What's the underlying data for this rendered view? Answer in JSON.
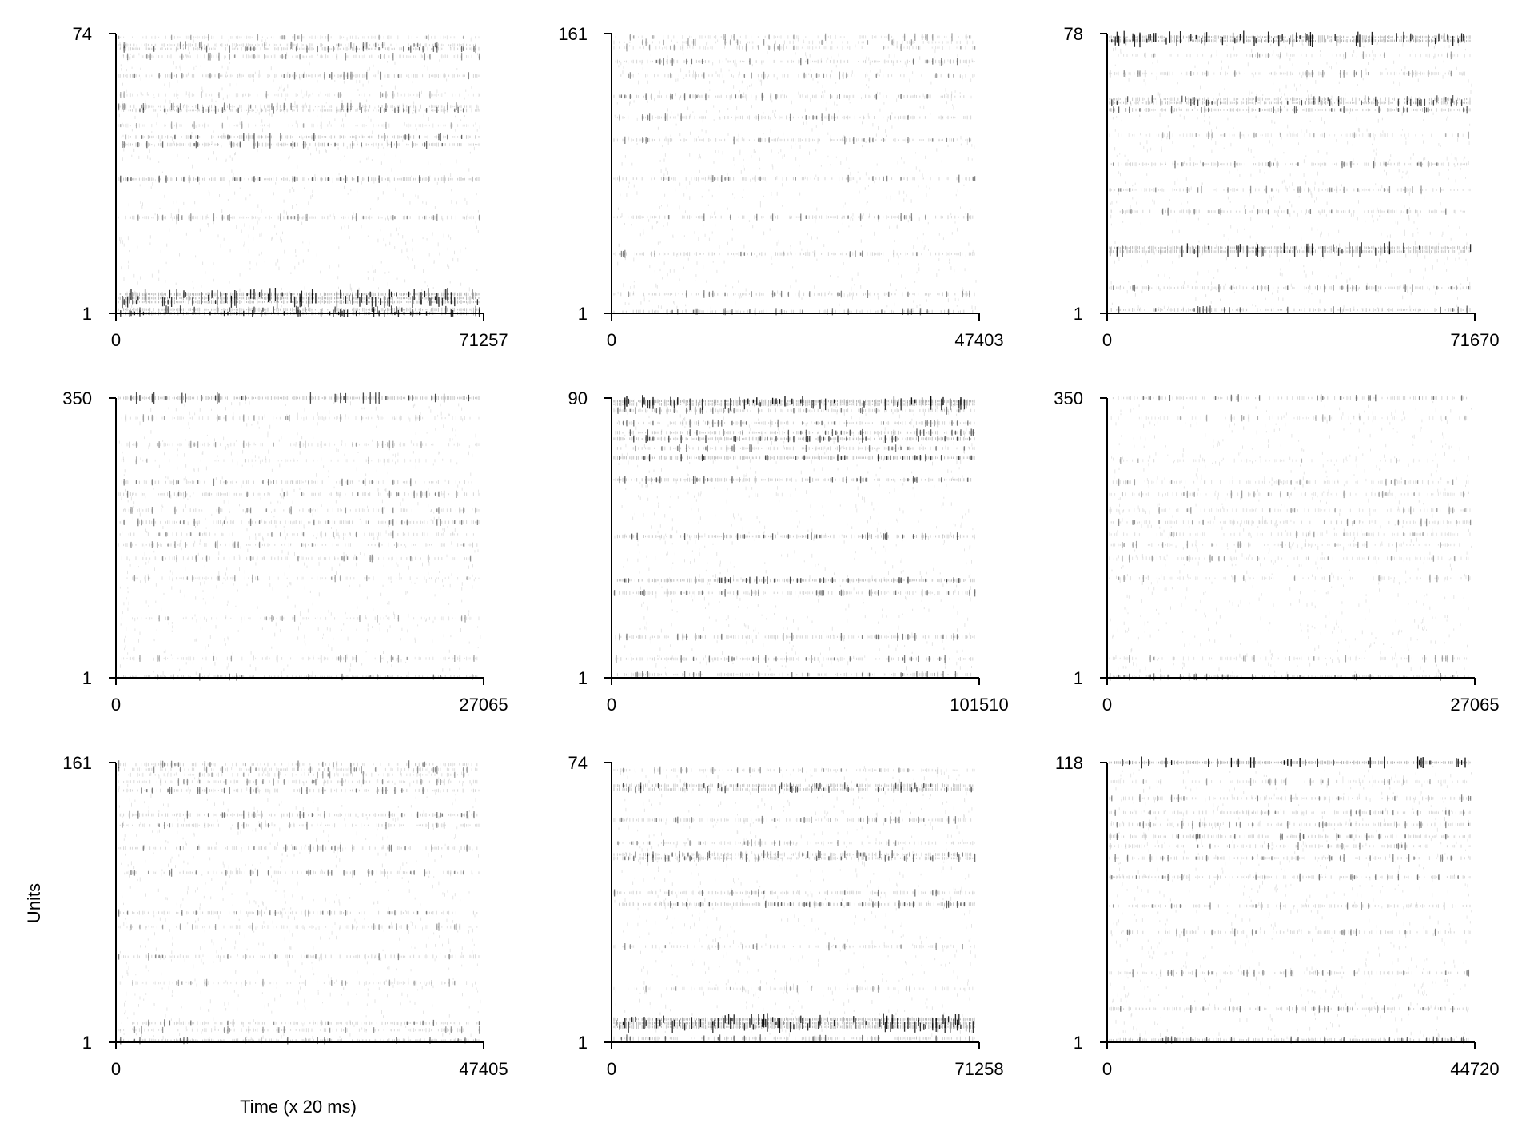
{
  "figure": {
    "ylabel": "Units",
    "xlabel": "Time (x 20 ms)"
  },
  "chart_data": [
    {
      "type": "scatter",
      "subtype": "raster",
      "xlim": [
        0,
        71257
      ],
      "ylim": [
        1,
        74
      ],
      "xticks": [
        "0",
        "71257"
      ],
      "yticks": [
        "1",
        "74"
      ],
      "rows": [
        {
          "u": 73,
          "d": 0.5,
          "a": 0.35
        },
        {
          "u": 71,
          "d": 0.6,
          "a": 0.45
        },
        {
          "u": 70,
          "d": 0.7,
          "a": 0.55
        },
        {
          "u": 68,
          "d": 0.5,
          "a": 0.4
        },
        {
          "u": 63,
          "d": 0.6,
          "a": 0.45
        },
        {
          "u": 58,
          "d": 0.4,
          "a": 0.3
        },
        {
          "u": 55,
          "d": 0.6,
          "a": 0.45
        },
        {
          "u": 54,
          "d": 0.7,
          "a": 0.55
        },
        {
          "u": 50,
          "d": 0.4,
          "a": 0.3
        },
        {
          "u": 47,
          "d": 0.7,
          "a": 0.6
        },
        {
          "u": 45,
          "d": 0.7,
          "a": 0.55
        },
        {
          "u": 36,
          "d": 0.7,
          "a": 0.6
        },
        {
          "u": 26,
          "d": 0.6,
          "a": 0.4
        },
        {
          "u": 6,
          "d": 0.9,
          "a": 0.85
        },
        {
          "u": 5,
          "d": 0.9,
          "a": 0.85
        },
        {
          "u": 4,
          "d": 0.9,
          "a": 0.8
        },
        {
          "u": 2,
          "d": 0.8,
          "a": 0.7
        },
        {
          "u": 1,
          "d": 0.8,
          "a": 0.8
        }
      ]
    },
    {
      "type": "scatter",
      "subtype": "raster",
      "xlim": [
        0,
        47403
      ],
      "ylim": [
        1,
        161
      ],
      "xticks": [
        "0",
        "47403"
      ],
      "yticks": [
        "1",
        "161"
      ],
      "rows": [
        {
          "u": 159,
          "d": 0.4,
          "a": 0.35
        },
        {
          "u": 156,
          "d": 0.4,
          "a": 0.35
        },
        {
          "u": 153,
          "d": 0.4,
          "a": 0.35
        },
        {
          "u": 145,
          "d": 0.5,
          "a": 0.5
        },
        {
          "u": 137,
          "d": 0.4,
          "a": 0.4
        },
        {
          "u": 125,
          "d": 0.5,
          "a": 0.5
        },
        {
          "u": 113,
          "d": 0.5,
          "a": 0.45
        },
        {
          "u": 100,
          "d": 0.5,
          "a": 0.45
        },
        {
          "u": 78,
          "d": 0.5,
          "a": 0.45
        },
        {
          "u": 56,
          "d": 0.5,
          "a": 0.45
        },
        {
          "u": 35,
          "d": 0.5,
          "a": 0.45
        },
        {
          "u": 12,
          "d": 0.5,
          "a": 0.45
        },
        {
          "u": 2,
          "d": 0.5,
          "a": 0.5
        }
      ]
    },
    {
      "type": "scatter",
      "subtype": "raster",
      "xlim": [
        0,
        71670
      ],
      "ylim": [
        1,
        78
      ],
      "xticks": [
        "0",
        "71670"
      ],
      "yticks": [
        "1",
        "78"
      ],
      "rows": [
        {
          "u": 77,
          "d": 0.9,
          "a": 0.85
        },
        {
          "u": 76,
          "d": 0.9,
          "a": 0.85
        },
        {
          "u": 72,
          "d": 0.4,
          "a": 0.35
        },
        {
          "u": 67,
          "d": 0.5,
          "a": 0.4
        },
        {
          "u": 60,
          "d": 0.7,
          "a": 0.6
        },
        {
          "u": 59,
          "d": 0.8,
          "a": 0.7
        },
        {
          "u": 57,
          "d": 0.7,
          "a": 0.6
        },
        {
          "u": 50,
          "d": 0.4,
          "a": 0.3
        },
        {
          "u": 42,
          "d": 0.6,
          "a": 0.5
        },
        {
          "u": 35,
          "d": 0.5,
          "a": 0.4
        },
        {
          "u": 29,
          "d": 0.5,
          "a": 0.45
        },
        {
          "u": 19,
          "d": 0.9,
          "a": 0.8
        },
        {
          "u": 18,
          "d": 0.9,
          "a": 0.75
        },
        {
          "u": 8,
          "d": 0.6,
          "a": 0.5
        },
        {
          "u": 2,
          "d": 0.6,
          "a": 0.6
        }
      ]
    },
    {
      "type": "scatter",
      "subtype": "raster",
      "xlim": [
        0,
        27065
      ],
      "ylim": [
        1,
        350
      ],
      "xticks": [
        "0",
        "27065"
      ],
      "yticks": [
        "1",
        "350"
      ],
      "rows": [
        {
          "u": 350,
          "d": 0.9,
          "a": 0.7
        },
        {
          "u": 325,
          "d": 0.4,
          "a": 0.35
        },
        {
          "u": 292,
          "d": 0.4,
          "a": 0.35
        },
        {
          "u": 272,
          "d": 0.3,
          "a": 0.3
        },
        {
          "u": 245,
          "d": 0.5,
          "a": 0.45
        },
        {
          "u": 230,
          "d": 0.5,
          "a": 0.45
        },
        {
          "u": 210,
          "d": 0.4,
          "a": 0.4
        },
        {
          "u": 195,
          "d": 0.5,
          "a": 0.45
        },
        {
          "u": 180,
          "d": 0.4,
          "a": 0.4
        },
        {
          "u": 167,
          "d": 0.4,
          "a": 0.4
        },
        {
          "u": 150,
          "d": 0.4,
          "a": 0.4
        },
        {
          "u": 125,
          "d": 0.4,
          "a": 0.35
        },
        {
          "u": 75,
          "d": 0.4,
          "a": 0.35
        },
        {
          "u": 25,
          "d": 0.4,
          "a": 0.35
        },
        {
          "u": 2,
          "d": 0.6,
          "a": 0.5
        }
      ]
    },
    {
      "type": "scatter",
      "subtype": "raster",
      "xlim": [
        0,
        101510
      ],
      "ylim": [
        1,
        90
      ],
      "xticks": [
        "0",
        "101510"
      ],
      "yticks": [
        "1",
        "90"
      ],
      "rows": [
        {
          "u": 89,
          "d": 0.95,
          "a": 0.95
        },
        {
          "u": 88,
          "d": 0.9,
          "a": 0.8
        },
        {
          "u": 86,
          "d": 0.6,
          "a": 0.5
        },
        {
          "u": 82,
          "d": 0.6,
          "a": 0.5
        },
        {
          "u": 79,
          "d": 0.7,
          "a": 0.6
        },
        {
          "u": 77,
          "d": 0.8,
          "a": 0.7
        },
        {
          "u": 74,
          "d": 0.6,
          "a": 0.5
        },
        {
          "u": 71,
          "d": 0.8,
          "a": 0.75
        },
        {
          "u": 64,
          "d": 0.7,
          "a": 0.6
        },
        {
          "u": 46,
          "d": 0.7,
          "a": 0.6
        },
        {
          "u": 32,
          "d": 0.8,
          "a": 0.7
        },
        {
          "u": 28,
          "d": 0.6,
          "a": 0.5
        },
        {
          "u": 14,
          "d": 0.6,
          "a": 0.5
        },
        {
          "u": 7,
          "d": 0.6,
          "a": 0.5
        },
        {
          "u": 2,
          "d": 0.6,
          "a": 0.5
        }
      ]
    },
    {
      "type": "scatter",
      "subtype": "raster",
      "xlim": [
        0,
        27065
      ],
      "ylim": [
        1,
        350
      ],
      "xticks": [
        "0",
        "27065"
      ],
      "yticks": [
        "1",
        "350"
      ],
      "rows": [
        {
          "u": 350,
          "d": 0.6,
          "a": 0.5
        },
        {
          "u": 325,
          "d": 0.3,
          "a": 0.3
        },
        {
          "u": 272,
          "d": 0.3,
          "a": 0.3
        },
        {
          "u": 245,
          "d": 0.4,
          "a": 0.35
        },
        {
          "u": 230,
          "d": 0.4,
          "a": 0.35
        },
        {
          "u": 210,
          "d": 0.4,
          "a": 0.35
        },
        {
          "u": 195,
          "d": 0.4,
          "a": 0.4
        },
        {
          "u": 180,
          "d": 0.4,
          "a": 0.35
        },
        {
          "u": 167,
          "d": 0.4,
          "a": 0.35
        },
        {
          "u": 150,
          "d": 0.4,
          "a": 0.35
        },
        {
          "u": 125,
          "d": 0.4,
          "a": 0.35
        },
        {
          "u": 25,
          "d": 0.4,
          "a": 0.35
        },
        {
          "u": 2,
          "d": 0.6,
          "a": 0.5
        }
      ]
    },
    {
      "type": "scatter",
      "subtype": "raster",
      "xlim": [
        0,
        47405
      ],
      "ylim": [
        1,
        161
      ],
      "xticks": [
        "0",
        "47405"
      ],
      "yticks": [
        "1",
        "161"
      ],
      "rows": [
        {
          "u": 160,
          "d": 0.5,
          "a": 0.45
        },
        {
          "u": 157,
          "d": 0.5,
          "a": 0.4
        },
        {
          "u": 154,
          "d": 0.4,
          "a": 0.35
        },
        {
          "u": 150,
          "d": 0.5,
          "a": 0.4
        },
        {
          "u": 145,
          "d": 0.5,
          "a": 0.5
        },
        {
          "u": 131,
          "d": 0.6,
          "a": 0.5
        },
        {
          "u": 125,
          "d": 0.5,
          "a": 0.45
        },
        {
          "u": 112,
          "d": 0.5,
          "a": 0.45
        },
        {
          "u": 98,
          "d": 0.5,
          "a": 0.45
        },
        {
          "u": 75,
          "d": 0.5,
          "a": 0.45
        },
        {
          "u": 67,
          "d": 0.4,
          "a": 0.35
        },
        {
          "u": 50,
          "d": 0.5,
          "a": 0.45
        },
        {
          "u": 35,
          "d": 0.4,
          "a": 0.35
        },
        {
          "u": 12,
          "d": 0.6,
          "a": 0.5
        },
        {
          "u": 8,
          "d": 0.5,
          "a": 0.4
        },
        {
          "u": 2,
          "d": 0.6,
          "a": 0.55
        }
      ]
    },
    {
      "type": "scatter",
      "subtype": "raster",
      "xlim": [
        0,
        71258
      ],
      "ylim": [
        1,
        74
      ],
      "xticks": [
        "0",
        "71258"
      ],
      "yticks": [
        "1",
        "74"
      ],
      "rows": [
        {
          "u": 72,
          "d": 0.5,
          "a": 0.4
        },
        {
          "u": 68,
          "d": 0.8,
          "a": 0.65
        },
        {
          "u": 67,
          "d": 0.8,
          "a": 0.65
        },
        {
          "u": 59,
          "d": 0.6,
          "a": 0.45
        },
        {
          "u": 53,
          "d": 0.5,
          "a": 0.4
        },
        {
          "u": 50,
          "d": 0.7,
          "a": 0.55
        },
        {
          "u": 49,
          "d": 0.7,
          "a": 0.55
        },
        {
          "u": 40,
          "d": 0.6,
          "a": 0.5
        },
        {
          "u": 37,
          "d": 0.7,
          "a": 0.6
        },
        {
          "u": 26,
          "d": 0.5,
          "a": 0.4
        },
        {
          "u": 15,
          "d": 0.4,
          "a": 0.35
        },
        {
          "u": 7,
          "d": 0.95,
          "a": 0.85
        },
        {
          "u": 6,
          "d": 0.95,
          "a": 0.85
        },
        {
          "u": 5,
          "d": 0.9,
          "a": 0.8
        },
        {
          "u": 2,
          "d": 0.6,
          "a": 0.55
        }
      ]
    },
    {
      "type": "scatter",
      "subtype": "raster",
      "xlim": [
        0,
        44720
      ],
      "ylim": [
        1,
        118
      ],
      "xticks": [
        "0",
        "44720"
      ],
      "yticks": [
        "1",
        "118"
      ],
      "rows": [
        {
          "u": 118,
          "d": 0.95,
          "a": 0.95
        },
        {
          "u": 110,
          "d": 0.4,
          "a": 0.35
        },
        {
          "u": 103,
          "d": 0.5,
          "a": 0.45
        },
        {
          "u": 97,
          "d": 0.5,
          "a": 0.45
        },
        {
          "u": 92,
          "d": 0.5,
          "a": 0.45
        },
        {
          "u": 87,
          "d": 0.6,
          "a": 0.55
        },
        {
          "u": 83,
          "d": 0.5,
          "a": 0.45
        },
        {
          "u": 78,
          "d": 0.5,
          "a": 0.45
        },
        {
          "u": 70,
          "d": 0.6,
          "a": 0.5
        },
        {
          "u": 58,
          "d": 0.5,
          "a": 0.45
        },
        {
          "u": 47,
          "d": 0.5,
          "a": 0.45
        },
        {
          "u": 30,
          "d": 0.5,
          "a": 0.45
        },
        {
          "u": 15,
          "d": 0.6,
          "a": 0.5
        },
        {
          "u": 2,
          "d": 0.7,
          "a": 0.6
        }
      ]
    }
  ]
}
